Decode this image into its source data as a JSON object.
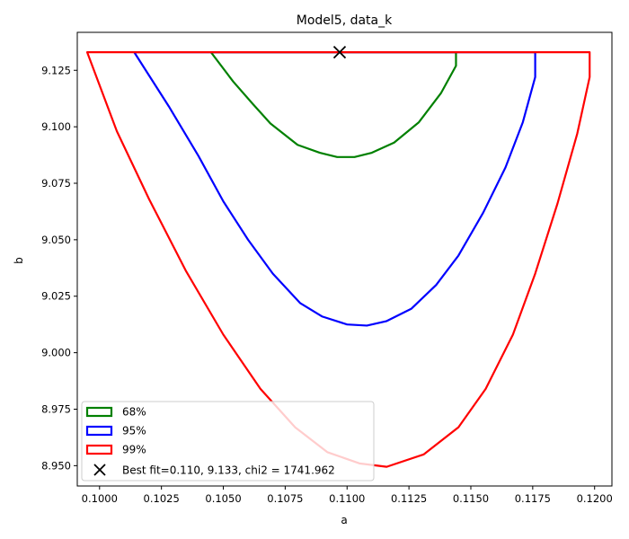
{
  "chart_data": {
    "type": "contour",
    "title": "Model5, data_k",
    "xlabel": "a",
    "ylabel": "b",
    "xlim": [
      0.0991,
      0.1207
    ],
    "ylim": [
      8.941,
      9.1418
    ],
    "x_ticks": [
      "0.1000",
      "0.1025",
      "0.1050",
      "0.1075",
      "0.1100",
      "0.1125",
      "0.1150",
      "0.1175",
      "0.1200"
    ],
    "y_ticks": [
      "8.950",
      "8.975",
      "9.000",
      "9.025",
      "9.050",
      "9.075",
      "9.100",
      "9.125"
    ],
    "grid": false,
    "legend_position": "lower-left",
    "series": [
      {
        "name": "68%",
        "color": "#008000",
        "points": [
          [
            0.1045,
            9.133
          ],
          [
            0.1144,
            9.133
          ],
          [
            0.1144,
            9.127
          ],
          [
            0.1138,
            9.115
          ],
          [
            0.1129,
            9.102
          ],
          [
            0.1119,
            9.093
          ],
          [
            0.111,
            9.0885
          ],
          [
            0.1103,
            9.0866
          ],
          [
            0.1096,
            9.0866
          ],
          [
            0.1089,
            9.0885
          ],
          [
            0.108,
            9.092
          ],
          [
            0.1069,
            9.1015
          ],
          [
            0.1062,
            9.11
          ],
          [
            0.1054,
            9.12
          ],
          [
            0.1045,
            9.133
          ]
        ]
      },
      {
        "name": "95%",
        "color": "#0000ff",
        "points": [
          [
            0.1014,
            9.133
          ],
          [
            0.1176,
            9.133
          ],
          [
            0.1176,
            9.122
          ],
          [
            0.1171,
            9.102
          ],
          [
            0.1164,
            9.082
          ],
          [
            0.1155,
            9.062
          ],
          [
            0.1145,
            9.043
          ],
          [
            0.1136,
            9.03
          ],
          [
            0.1126,
            9.0195
          ],
          [
            0.1116,
            9.014
          ],
          [
            0.1108,
            9.012
          ],
          [
            0.11,
            9.0125
          ],
          [
            0.109,
            9.016
          ],
          [
            0.1081,
            9.022
          ],
          [
            0.107,
            9.035
          ],
          [
            0.106,
            9.05
          ],
          [
            0.105,
            9.067
          ],
          [
            0.104,
            9.087
          ],
          [
            0.1028,
            9.109
          ],
          [
            0.1014,
            9.133
          ]
        ]
      },
      {
        "name": "99%",
        "color": "#ff0000",
        "points": [
          [
            0.0995,
            9.133
          ],
          [
            0.1198,
            9.133
          ],
          [
            0.1198,
            9.122
          ],
          [
            0.1193,
            9.097
          ],
          [
            0.1185,
            9.066
          ],
          [
            0.1176,
            9.035
          ],
          [
            0.1167,
            9.008
          ],
          [
            0.1156,
            8.984
          ],
          [
            0.1145,
            8.967
          ],
          [
            0.1131,
            8.955
          ],
          [
            0.1116,
            8.9495
          ],
          [
            0.1105,
            8.951
          ],
          [
            0.1092,
            8.956
          ],
          [
            0.1079,
            8.967
          ],
          [
            0.1065,
            8.984
          ],
          [
            0.105,
            9.008
          ],
          [
            0.1035,
            9.036
          ],
          [
            0.102,
            9.068
          ],
          [
            0.1007,
            9.098
          ],
          [
            0.0995,
            9.133
          ]
        ]
      }
    ],
    "best_fit": {
      "x": 0.1097,
      "y": 9.133,
      "label": "Best fit=0.110, 9.133, chi2 = 1741.962",
      "marker": "x",
      "color": "#000000"
    }
  }
}
